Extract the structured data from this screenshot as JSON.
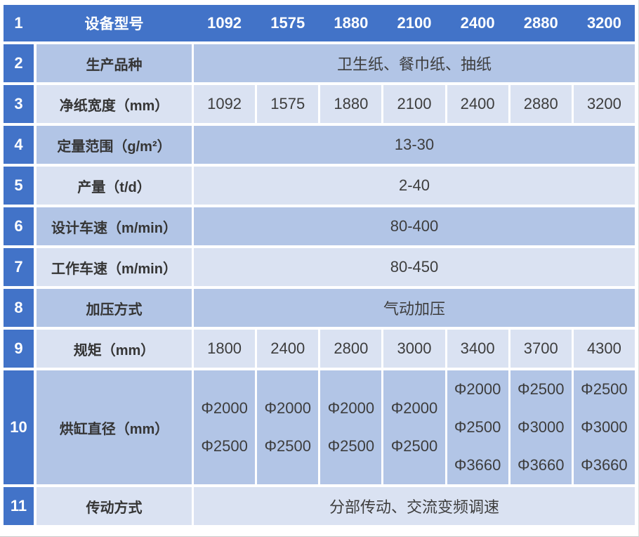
{
  "colors": {
    "header_blue": "#4273C8",
    "row_shade_dark": "#B2C5E6",
    "row_shade_light": "#DAE2F2",
    "body_text": "#3D3D3D",
    "header_text": "#FFFFFF"
  },
  "table": {
    "header": {
      "no": "1",
      "label": "设备型号",
      "models": [
        "1092",
        "1575",
        "1880",
        "2100",
        "2400",
        "2880",
        "3200"
      ]
    },
    "rows": [
      {
        "no": "2",
        "label": "生产品种",
        "type": "merged",
        "value": "卫生纸、餐巾纸、抽纸",
        "shade": "dark"
      },
      {
        "no": "3",
        "label": "净纸宽度（mm）",
        "type": "cells",
        "values": [
          "1092",
          "1575",
          "1880",
          "2100",
          "2400",
          "2880",
          "3200"
        ],
        "shade": "light"
      },
      {
        "no": "4",
        "label": "定量范围（g/m²）",
        "type": "merged",
        "value": "13-30",
        "shade": "dark"
      },
      {
        "no": "5",
        "label": "产量（t/d）",
        "type": "merged",
        "value": "2-40",
        "shade": "light"
      },
      {
        "no": "6",
        "label": "设计车速（m/min）",
        "type": "merged",
        "value": "80-400",
        "shade": "dark"
      },
      {
        "no": "7",
        "label": "工作车速（m/min）",
        "type": "merged",
        "value": "80-450",
        "shade": "light"
      },
      {
        "no": "8",
        "label": "加压方式",
        "type": "merged",
        "value": "气动加压",
        "shade": "dark"
      },
      {
        "no": "9",
        "label": "规矩（mm）",
        "type": "cells",
        "values": [
          "1800",
          "2400",
          "2800",
          "3000",
          "3400",
          "3700",
          "4300"
        ],
        "shade": "light"
      },
      {
        "no": "10",
        "label": "烘缸直径（mm）",
        "type": "multiline",
        "values": [
          [
            "Φ2000",
            "Φ2500"
          ],
          [
            "Φ2000",
            "Φ2500"
          ],
          [
            "Φ2000",
            "Φ2500"
          ],
          [
            "Φ2000",
            "Φ2500"
          ],
          [
            "Φ2000",
            "Φ2500",
            "Φ3660"
          ],
          [
            "Φ2500",
            "Φ3000",
            "Φ3660"
          ],
          [
            "Φ2500",
            "Φ3000",
            "Φ3660"
          ]
        ],
        "shade": "dark"
      },
      {
        "no": "11",
        "label": "传动方式",
        "type": "merged",
        "value": "分部传动、交流变频调速",
        "shade": "light"
      }
    ]
  }
}
